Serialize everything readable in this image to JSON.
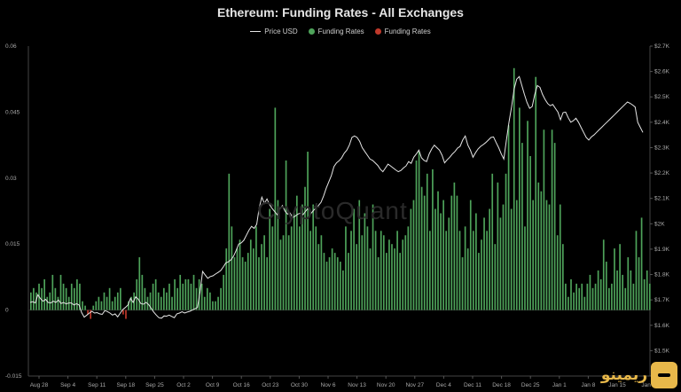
{
  "chart_data": {
    "type": "bar",
    "title": "Ethereum: Funding Rates - All Exchanges",
    "legend": [
      "Price USD",
      "Funding Rates",
      "Funding Rates"
    ],
    "legend_colors": {
      "price": "#e6e6e6",
      "positive": "#4ea35a",
      "negative": "#c0392b"
    },
    "x_ticks": [
      "Aug 28",
      "Sep 4",
      "Sep 11",
      "Sep 18",
      "Sep 25",
      "Oct 2",
      "Oct 9",
      "Oct 16",
      "Oct 23",
      "Oct 30",
      "Nov 6",
      "Nov 13",
      "Nov 20",
      "Nov 27",
      "Dec 4",
      "Dec 11",
      "Dec 18",
      "Dec 25",
      "Jan 1",
      "Jan 8",
      "Jan 15",
      "Jan"
    ],
    "y_left_ticks": [
      "0.06",
      "0.045",
      "0.03",
      "0.015",
      "0",
      "-0.015"
    ],
    "y_left_range": [
      -0.015,
      0.06
    ],
    "y_right_ticks": [
      "$2.7K",
      "$2.6K",
      "$2.5K",
      "$2.4K",
      "$2.3K",
      "$2.2K",
      "$2.1K",
      "$2K",
      "$1.9K",
      "$1.8K",
      "$1.7K",
      "$1.6K",
      "$1.5K",
      "$1.4K"
    ],
    "y_right_range": [
      1400,
      2700
    ],
    "funding_rates": [
      0.004,
      0.005,
      0.004,
      0.006,
      0.005,
      0.007,
      0.003,
      0.004,
      0.008,
      0.005,
      0.003,
      0.008,
      0.006,
      0.005,
      0.003,
      0.006,
      0.005,
      0.007,
      0.006,
      0.002,
      0.001,
      -0.001,
      -0.002,
      0.001,
      0.002,
      0.003,
      0.002,
      0.004,
      0.003,
      0.005,
      0.002,
      0.003,
      0.004,
      0.005,
      -0.001,
      -0.002,
      0.002,
      0.003,
      0.004,
      0.007,
      0.012,
      0.008,
      0.005,
      0.003,
      0.004,
      0.006,
      0.007,
      0.004,
      0.003,
      0.005,
      0.004,
      0.006,
      0.003,
      0.007,
      0.005,
      0.008,
      0.006,
      0.007,
      0.007,
      0.006,
      0.008,
      0.005,
      0.007,
      0.006,
      0.003,
      0.005,
      0.004,
      0.002,
      0.002,
      0.003,
      0.005,
      0.008,
      0.014,
      0.031,
      0.019,
      0.012,
      0.014,
      0.016,
      0.012,
      0.011,
      0.013,
      0.016,
      0.014,
      0.019,
      0.012,
      0.015,
      0.017,
      0.012,
      0.023,
      0.019,
      0.046,
      0.025,
      0.016,
      0.017,
      0.034,
      0.017,
      0.019,
      0.022,
      0.026,
      0.019,
      0.024,
      0.028,
      0.036,
      0.018,
      0.024,
      0.019,
      0.015,
      0.017,
      0.013,
      0.011,
      0.012,
      0.014,
      0.013,
      0.012,
      0.011,
      0.009,
      0.019,
      0.013,
      0.018,
      0.023,
      0.015,
      0.025,
      0.017,
      0.022,
      0.019,
      0.014,
      0.024,
      0.018,
      0.012,
      0.018,
      0.017,
      0.013,
      0.016,
      0.015,
      0.014,
      0.018,
      0.013,
      0.016,
      0.017,
      0.019,
      0.023,
      0.025,
      0.034,
      0.036,
      0.028,
      0.026,
      0.031,
      0.018,
      0.032,
      0.023,
      0.027,
      0.022,
      0.025,
      0.018,
      0.021,
      0.026,
      0.029,
      0.026,
      0.018,
      0.012,
      0.019,
      0.014,
      0.025,
      0.018,
      0.022,
      0.013,
      0.016,
      0.021,
      0.018,
      0.023,
      0.031,
      0.015,
      0.029,
      0.021,
      0.024,
      0.031,
      0.042,
      0.023,
      0.055,
      0.025,
      0.046,
      0.038,
      0.019,
      0.043,
      0.035,
      0.025,
      0.053,
      0.029,
      0.027,
      0.041,
      0.025,
      0.024,
      0.041,
      0.038,
      0.017,
      0.024,
      0.015,
      0.006,
      0.003,
      0.007,
      0.004,
      0.006,
      0.005,
      0.006,
      0.003,
      0.006,
      0.008,
      0.005,
      0.006,
      0.009,
      0.007,
      0.016,
      0.011,
      0.005,
      0.006,
      0.014,
      0.009,
      0.015,
      0.008,
      0.005,
      0.012,
      0.009,
      0.006,
      0.018,
      0.012,
      0.021,
      0.007,
      0.009,
      0.006
    ],
    "price_usd": [
      1690,
      1693,
      1688,
      1720,
      1705,
      1695,
      1702,
      1690,
      1688,
      1695,
      1690,
      1700,
      1686,
      1690,
      1684,
      1688,
      1688,
      1680,
      1685,
      1680,
      1650,
      1632,
      1640,
      1648,
      1655,
      1648,
      1650,
      1645,
      1643,
      1658,
      1654,
      1648,
      1640,
      1645,
      1633,
      1648,
      1662,
      1670,
      1680,
      1706,
      1690,
      1712,
      1703,
      1686,
      1683,
      1690,
      1682,
      1667,
      1652,
      1640,
      1630,
      1628,
      1637,
      1636,
      1640,
      1635,
      1630,
      1645,
      1648,
      1653,
      1648,
      1652,
      1655,
      1660,
      1665,
      1670,
      1732,
      1812,
      1798,
      1785,
      1792,
      1795,
      1802,
      1808,
      1815,
      1830,
      1846,
      1850,
      1858,
      1872,
      1895,
      1920,
      1925,
      1935,
      1955,
      1975,
      1990,
      1982,
      1998,
      2065,
      2105,
      2080,
      2098,
      2075,
      2060,
      2048,
      2035,
      2058,
      2072,
      2050,
      2038,
      2042,
      2025,
      2030,
      2038,
      2042,
      2036,
      2050,
      2062,
      2040,
      2052,
      2062,
      2072,
      2085,
      2110,
      2140,
      2165,
      2190,
      2225,
      2240,
      2248,
      2260,
      2278,
      2290,
      2310,
      2340,
      2346,
      2340,
      2325,
      2300,
      2285,
      2270,
      2255,
      2250,
      2240,
      2230,
      2215,
      2205,
      2220,
      2235,
      2228,
      2220,
      2212,
      2205,
      2210,
      2220,
      2228,
      2245,
      2238,
      2262,
      2275,
      2290,
      2260,
      2250,
      2245,
      2275,
      2295,
      2310,
      2300,
      2290,
      2270,
      2240,
      2252,
      2262,
      2275,
      2285,
      2298,
      2305,
      2330,
      2346,
      2310,
      2290,
      2262,
      2280,
      2295,
      2305,
      2312,
      2320,
      2330,
      2340,
      2342,
      2320,
      2300,
      2275,
      2255,
      2330,
      2400,
      2460,
      2530,
      2570,
      2580,
      2545,
      2510,
      2478,
      2455,
      2462,
      2510,
      2545,
      2538,
      2510,
      2490,
      2474,
      2465,
      2470,
      2455,
      2440,
      2410,
      2438,
      2440,
      2418,
      2400,
      2406,
      2416,
      2400,
      2380,
      2360,
      2340,
      2330,
      2342,
      2350,
      2360,
      2370,
      2380,
      2390,
      2400,
      2410,
      2420,
      2430,
      2440,
      2450,
      2460,
      2470,
      2480,
      2475,
      2468,
      2460,
      2400,
      2380,
      2360
    ]
  },
  "watermark_text": "CryptoQuant",
  "brand_text": "ریمینو"
}
